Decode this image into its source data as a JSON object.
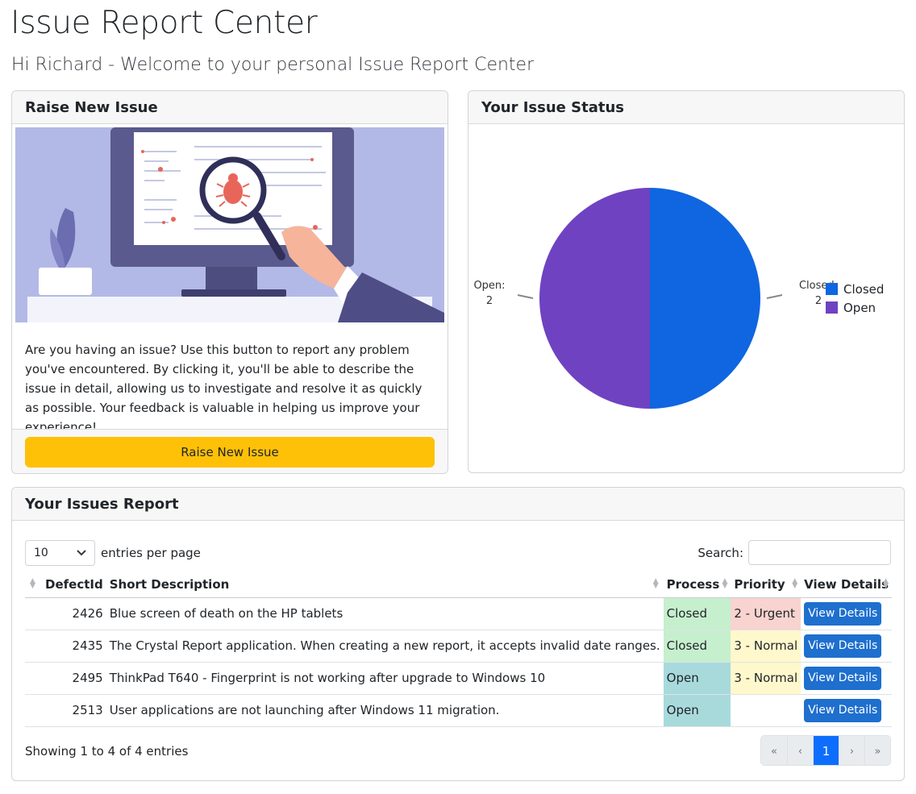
{
  "page": {
    "title": "Issue Report Center",
    "subtitle": "Hi Richard - Welcome to your personal Issue Report Center"
  },
  "raise_card": {
    "header": "Raise New Issue",
    "text": "Are you having an issue? Use this button to report any problem you've encountered. By clicking it, you'll be able to describe the issue in detail, allowing us to investigate and resolve it as quickly as possible. Your feedback is valuable in helping us improve your experience!",
    "button_label": "Raise New Issue"
  },
  "status_card": {
    "header": "Your Issue Status"
  },
  "chart_data": {
    "type": "pie",
    "categories": [
      "Closed",
      "Open"
    ],
    "values": [
      2,
      2
    ],
    "colors": [
      "#0f66e0",
      "#6f42c1"
    ],
    "slice_labels": [
      {
        "name": "Closed:",
        "value": "2"
      },
      {
        "name": "Open:",
        "value": "2"
      }
    ],
    "legend": {
      "position": "right",
      "entries": [
        "Closed",
        "Open"
      ]
    }
  },
  "report_card": {
    "header": "Your Issues Report",
    "length_value": "10",
    "length_label": "entries per page",
    "search_label": "Search:",
    "search_value": "",
    "columns": [
      "DefectId",
      "Short Description",
      "Process",
      "Priority",
      "View Details"
    ],
    "rows": [
      {
        "id": "2426",
        "desc": "Blue screen of death on the HP tablets",
        "process": "Closed",
        "priority": "2 - Urgent",
        "action": "View Details"
      },
      {
        "id": "2435",
        "desc": "The Crystal Report application. When creating a new report, it accepts invalid date ranges.",
        "process": "Closed",
        "priority": "3 - Normal",
        "action": "View Details"
      },
      {
        "id": "2495",
        "desc": "ThinkPad T640 - Fingerprint is not working after upgrade to Windows 10",
        "process": "Open",
        "priority": "3 - Normal",
        "action": "View Details"
      },
      {
        "id": "2513",
        "desc": "User applications are not launching after Windows 11 migration.",
        "process": "Open",
        "priority": "",
        "action": "View Details"
      }
    ],
    "info": "Showing 1 to 4 of 4 entries",
    "pager": {
      "first": "«",
      "prev": "‹",
      "current": "1",
      "next": "›",
      "last": "»"
    }
  },
  "icons": {
    "length_select": "chevron-down-icon",
    "sort": "sort-icon"
  },
  "colors": {
    "button_warning": "#ffc107",
    "button_primary": "#1e6fce",
    "pager_active": "#0d6efd",
    "status_closed": "#c6efce",
    "status_open": "#a8dadc",
    "priority_urgent": "#f8d3cf",
    "priority_normal": "#fff8cc"
  }
}
